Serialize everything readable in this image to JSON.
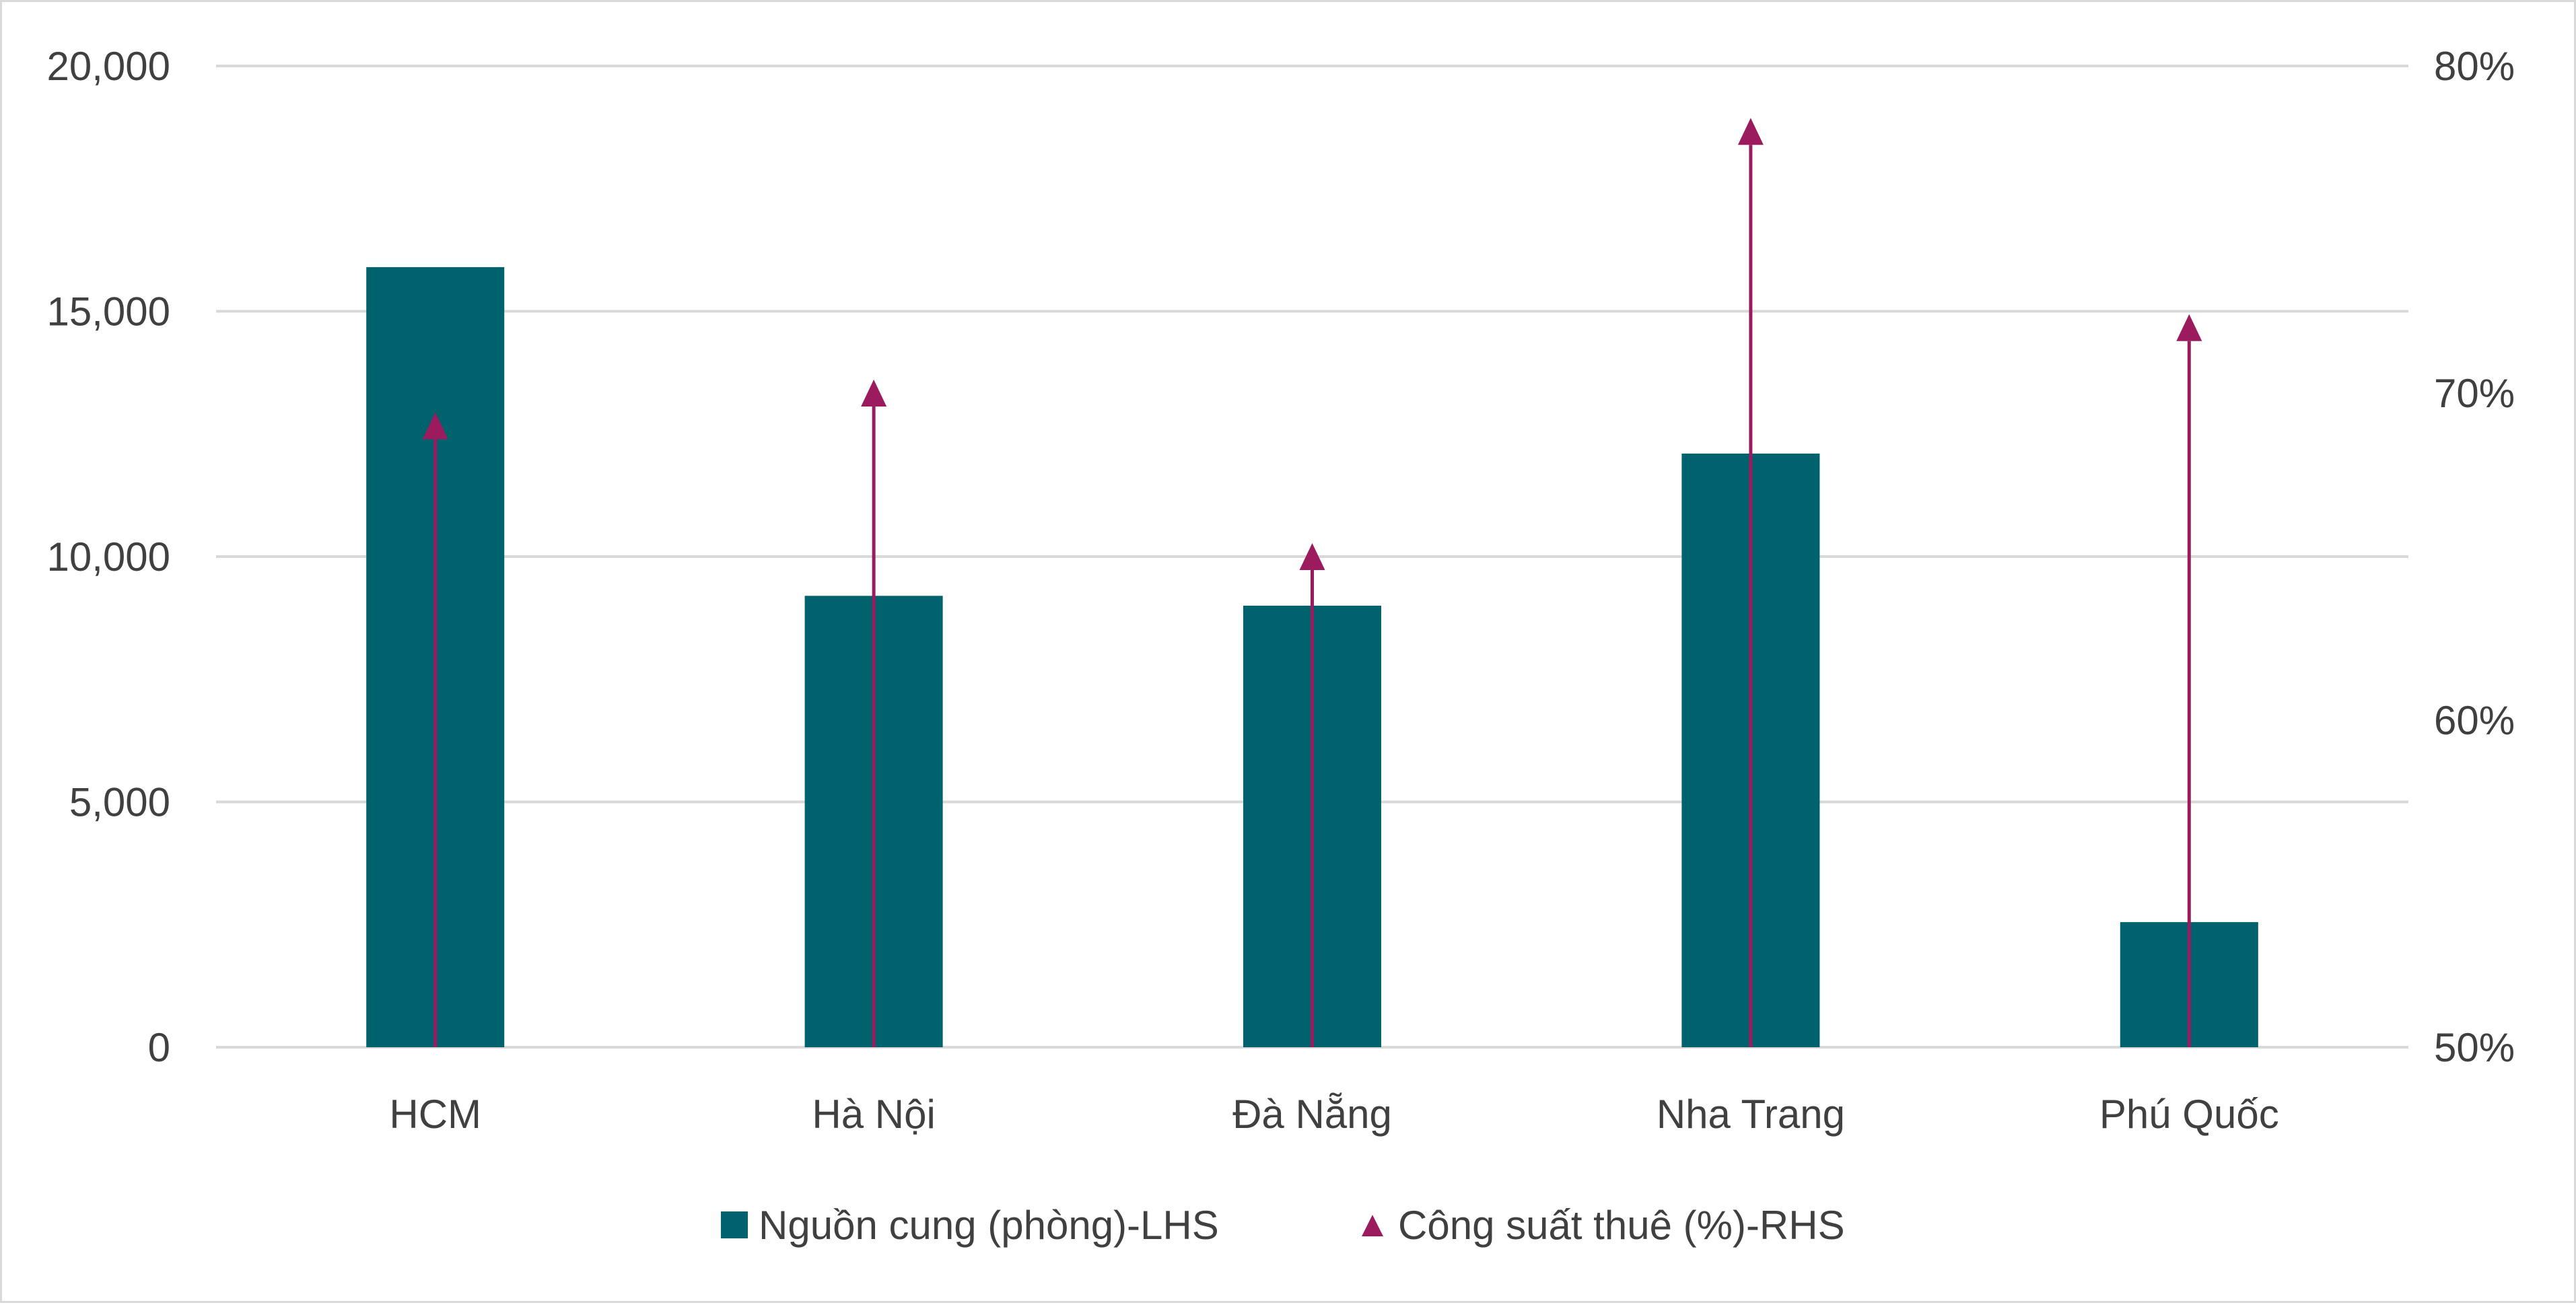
{
  "chart_data": {
    "type": "bar",
    "categories": [
      "HCM",
      "Hà Nội",
      "Đà Nẵng",
      "Nha Trang",
      "Phú Quốc"
    ],
    "series": [
      {
        "name": "Nguồn cung (phòng)-LHS",
        "type": "bar",
        "axis": "left",
        "values": [
          15900,
          9200,
          9000,
          12100,
          2550
        ]
      },
      {
        "name": "Công suất thuê (%)-RHS",
        "type": "marker",
        "marker": "triangle",
        "axis": "right",
        "values": [
          69,
          70,
          65,
          78,
          72
        ]
      }
    ],
    "ylim_left": [
      0,
      20000
    ],
    "yticks_left": [
      0,
      5000,
      10000,
      15000,
      20000
    ],
    "ytick_labels_left": [
      "0",
      "5,000",
      "10,000",
      "15,000",
      "20,000"
    ],
    "ylim_right": [
      50,
      80
    ],
    "yticks_right": [
      50,
      60,
      70,
      80
    ],
    "ytick_labels_right": [
      "50%",
      "60%",
      "70%",
      "80%"
    ],
    "grid": true,
    "legend_position": "bottom",
    "colors": {
      "bar": "#00626C",
      "marker": "#9B1B5E",
      "grid": "#d9d9d9",
      "text": "#404040"
    }
  }
}
